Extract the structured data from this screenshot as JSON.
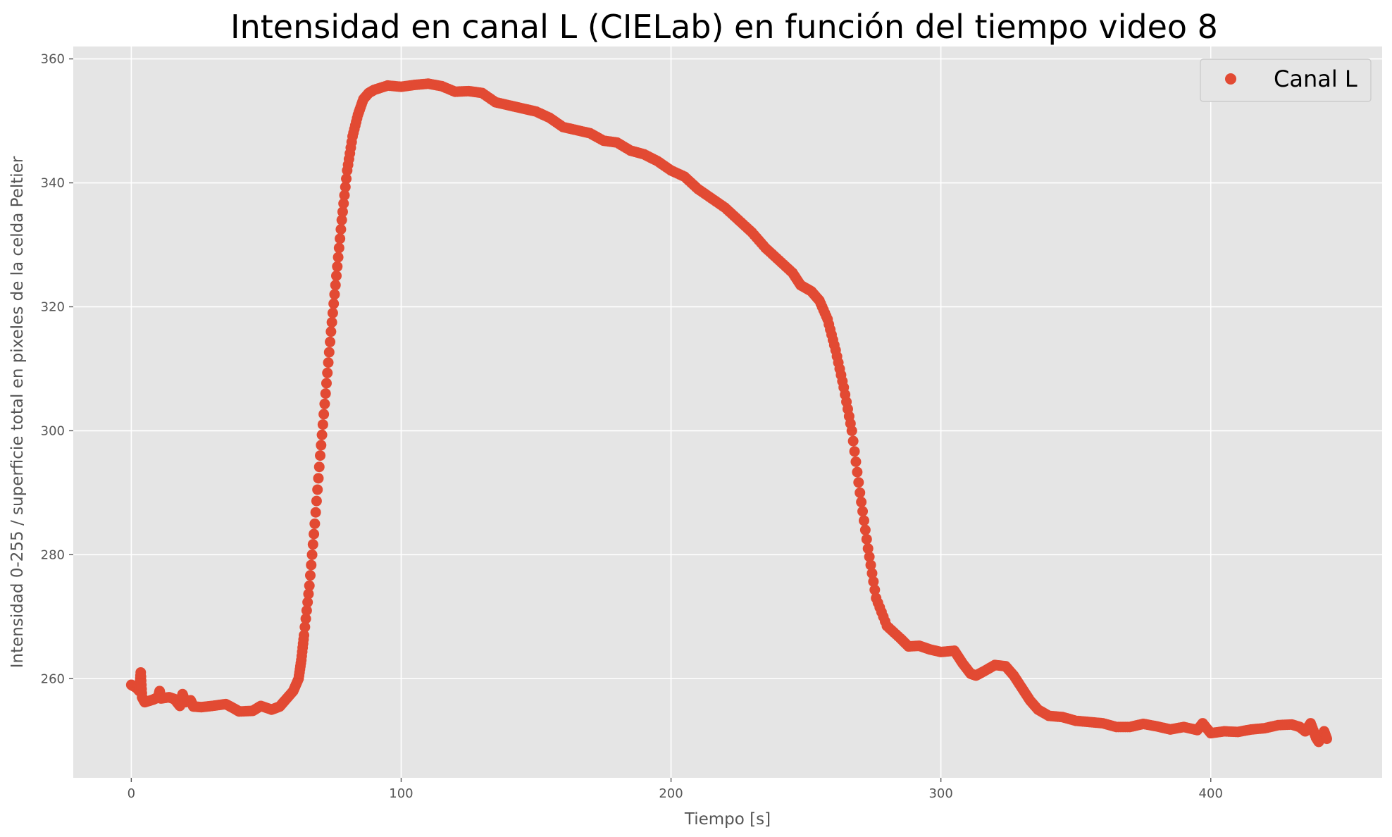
{
  "chart_data": {
    "type": "scatter",
    "title": "Intensidad en canal L (CIELab) en función del tiempo video 8",
    "xlabel": "Tiempo [s]",
    "ylabel": "Intensidad 0-255 / superficie total en pixeles de la celda Peltier",
    "xlim": [
      -21.5,
      463.5
    ],
    "ylim": [
      244,
      362
    ],
    "xticks": [
      "0",
      "100",
      "200",
      "300",
      "400"
    ],
    "xtick_values": [
      0,
      100,
      200,
      300,
      400
    ],
    "yticks": [
      "260",
      "280",
      "300",
      "320",
      "340",
      "360"
    ],
    "ytick_values": [
      260,
      280,
      300,
      320,
      340,
      360
    ],
    "grid": true,
    "legend_position": "top-right",
    "series": [
      {
        "name": "Canal L",
        "color": "#E24A33",
        "marker": "circle",
        "points": [
          [
            0,
            259
          ],
          [
            2,
            258.5
          ],
          [
            3,
            258
          ],
          [
            3.5,
            261
          ],
          [
            4,
            257
          ],
          [
            5,
            256.2
          ],
          [
            8,
            256.6
          ],
          [
            10,
            257
          ],
          [
            10.5,
            258
          ],
          [
            11,
            256.8
          ],
          [
            14,
            257
          ],
          [
            16,
            256.7
          ],
          [
            18,
            255.6
          ],
          [
            19,
            257.5
          ],
          [
            20,
            256.2
          ],
          [
            22,
            256.5
          ],
          [
            23,
            255.5
          ],
          [
            26,
            255.4
          ],
          [
            30,
            255.6
          ],
          [
            35,
            255.9
          ],
          [
            38,
            255.2
          ],
          [
            40,
            254.7
          ],
          [
            45,
            254.8
          ],
          [
            48,
            255.6
          ],
          [
            52,
            255
          ],
          [
            55,
            255.5
          ],
          [
            57,
            256.5
          ],
          [
            60,
            258
          ],
          [
            62,
            260
          ],
          [
            63,
            263
          ],
          [
            64,
            267
          ],
          [
            66,
            275
          ],
          [
            68,
            285
          ],
          [
            70,
            296
          ],
          [
            72,
            306
          ],
          [
            74,
            316
          ],
          [
            76,
            325
          ],
          [
            78,
            334
          ],
          [
            80,
            342
          ],
          [
            82,
            347.5
          ],
          [
            84,
            351
          ],
          [
            86,
            353.5
          ],
          [
            88,
            354.5
          ],
          [
            90,
            355
          ],
          [
            95,
            355.7
          ],
          [
            100,
            355.5
          ],
          [
            105,
            355.8
          ],
          [
            110,
            356
          ],
          [
            115,
            355.6
          ],
          [
            120,
            354.7
          ],
          [
            125,
            354.8
          ],
          [
            130,
            354.5
          ],
          [
            135,
            353
          ],
          [
            140,
            352.5
          ],
          [
            145,
            352
          ],
          [
            150,
            351.5
          ],
          [
            155,
            350.5
          ],
          [
            160,
            349
          ],
          [
            165,
            348.5
          ],
          [
            170,
            348
          ],
          [
            175,
            346.8
          ],
          [
            180,
            346.5
          ],
          [
            185,
            345.2
          ],
          [
            190,
            344.6
          ],
          [
            195,
            343.5
          ],
          [
            200,
            342
          ],
          [
            205,
            341
          ],
          [
            210,
            339
          ],
          [
            215,
            337.5
          ],
          [
            220,
            336
          ],
          [
            225,
            334
          ],
          [
            230,
            332
          ],
          [
            235,
            329.5
          ],
          [
            240,
            327.5
          ],
          [
            245,
            325.5
          ],
          [
            248,
            323.5
          ],
          [
            252,
            322.5
          ],
          [
            255,
            321
          ],
          [
            258,
            318
          ],
          [
            261,
            313
          ],
          [
            264,
            307
          ],
          [
            267,
            300
          ],
          [
            270,
            290
          ],
          [
            273,
            281
          ],
          [
            276,
            273
          ],
          [
            280,
            268.5
          ],
          [
            285,
            266.5
          ],
          [
            288,
            265.2
          ],
          [
            292,
            265.3
          ],
          [
            296,
            264.7
          ],
          [
            300,
            264.3
          ],
          [
            305,
            264.5
          ],
          [
            308,
            262.5
          ],
          [
            311,
            260.8
          ],
          [
            313,
            260.5
          ],
          [
            316,
            261.2
          ],
          [
            320,
            262.2
          ],
          [
            324,
            262
          ],
          [
            327,
            260.5
          ],
          [
            330,
            258.5
          ],
          [
            333,
            256.5
          ],
          [
            336,
            255
          ],
          [
            340,
            254
          ],
          [
            345,
            253.8
          ],
          [
            350,
            253.2
          ],
          [
            355,
            253
          ],
          [
            360,
            252.8
          ],
          [
            365,
            252.2
          ],
          [
            370,
            252.2
          ],
          [
            375,
            252.7
          ],
          [
            380,
            252.3
          ],
          [
            385,
            251.8
          ],
          [
            390,
            252.2
          ],
          [
            395,
            251.7
          ],
          [
            397,
            252.8
          ],
          [
            400,
            251.2
          ],
          [
            405,
            251.5
          ],
          [
            410,
            251.4
          ],
          [
            415,
            251.8
          ],
          [
            420,
            252
          ],
          [
            425,
            252.5
          ],
          [
            430,
            252.6
          ],
          [
            433,
            252.2
          ],
          [
            435,
            251.5
          ],
          [
            437,
            252.8
          ],
          [
            439,
            250.5
          ],
          [
            440,
            249.8
          ],
          [
            442,
            251.5
          ],
          [
            443,
            250.3
          ]
        ]
      }
    ]
  },
  "colors": {
    "plot_background": "#E5E5E5",
    "grid": "#FFFFFF",
    "series": "#E24A33",
    "legend_background": "#E5E5E5",
    "legend_border": "#CCCCCC"
  }
}
